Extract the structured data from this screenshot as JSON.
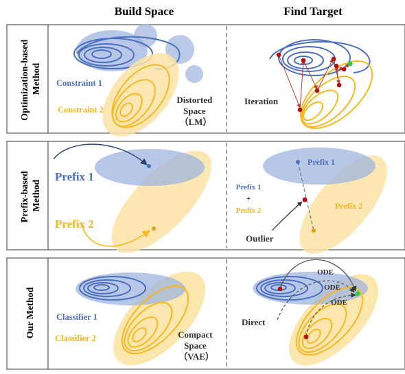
{
  "headers": {
    "build_space": "Build Space",
    "find_target": "Find Target"
  },
  "rows": [
    {
      "method_lines": [
        "Optimization-based",
        "Method"
      ],
      "build_labels": {
        "blue": "Constraint 1",
        "yellow": "Constraint 2",
        "space_lines": [
          "Distorted",
          "Space",
          "（LM）"
        ]
      },
      "target_labels": {
        "note": "Iteration"
      }
    },
    {
      "method_lines": [
        "Prefix-based",
        "Method"
      ],
      "build_labels": {
        "blue": "Prefix 1",
        "yellow": "Prefix 2"
      },
      "target_labels": {
        "blue_region": "Prefix 1",
        "yellow_region": "Prefix 2",
        "combo_blue": "Prefix 1",
        "combo_plus": "+",
        "combo_yellow": "Prefix 2",
        "note": "Outlier"
      }
    },
    {
      "method_lines": [
        "Our Method"
      ],
      "build_labels": {
        "blue": "Classifier 1",
        "yellow": "Classifier 2",
        "space_lines": [
          "Compact",
          "Space",
          "（VAE）"
        ]
      },
      "target_labels": {
        "ode_1": "ODE",
        "ode_2": "ODE",
        "ode_3": "ODE",
        "note": "Direct"
      }
    }
  ],
  "colors": {
    "blue_line": "#4a6fbf",
    "blue_fill": "#9fb4df",
    "yellow_line": "#f5b81e",
    "yellow_fill": "#fbe3a4",
    "point_red": "#b01010",
    "arrow_red": "#c0392b",
    "point_green": "#2ecc40"
  }
}
